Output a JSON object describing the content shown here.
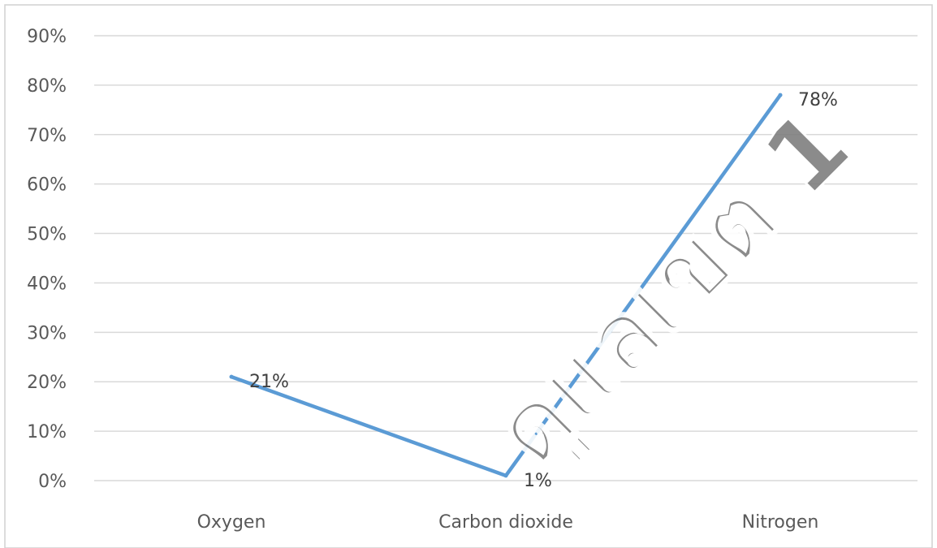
{
  "chart_data": {
    "type": "line",
    "categories": [
      "Oxygen",
      "Carbon dioxide",
      "Nitrogen"
    ],
    "series": [
      {
        "values": [
          21,
          1,
          78
        ],
        "data_labels": [
          "21%",
          "1%",
          "78%"
        ],
        "color": "#5B9BD5"
      }
    ],
    "y_ticks": [
      "0%",
      "10%",
      "20%",
      "30%",
      "40%",
      "50%",
      "60%",
      "70%",
      "80%",
      "90%"
    ],
    "ylim": [
      0,
      90
    ],
    "grid": true,
    "title": "",
    "xlabel": "",
    "ylabel": ""
  },
  "watermark": {
    "text": "ดูแลเขต 1",
    "color": "#7f7f7f"
  },
  "colors": {
    "gridline": "#d9d9d9",
    "frame": "#d0d0d0",
    "text": "#595959"
  }
}
